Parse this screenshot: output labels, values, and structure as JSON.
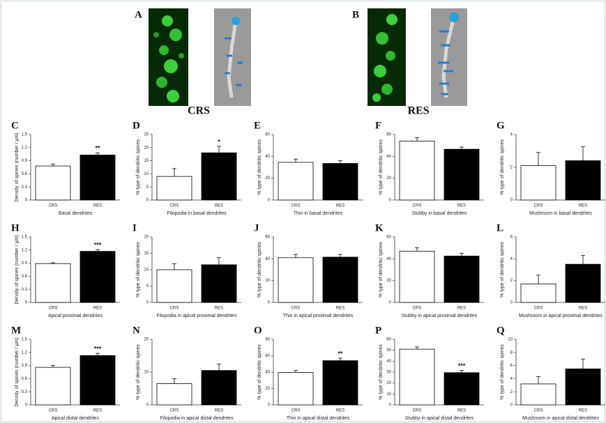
{
  "images": [
    {
      "letter": "A",
      "label": "CRS"
    },
    {
      "letter": "B",
      "label": "RES"
    }
  ],
  "chart_data": [
    {
      "type": "bar",
      "panel": "C",
      "ylabel": "Density of spines (number / µm)",
      "xlabel": "Basal dendrites",
      "categories": [
        "CRS",
        "RES"
      ],
      "values": [
        0.78,
        1.03
      ],
      "errors": [
        0.04,
        0.05
      ],
      "colors": [
        "#ffffff",
        "#000000"
      ],
      "significance": [
        null,
        "**"
      ],
      "ylim": [
        0,
        1.5
      ],
      "yticks": [
        0,
        0.3,
        0.6,
        0.9,
        1.2,
        1.5
      ]
    },
    {
      "type": "bar",
      "panel": "D",
      "ylabel": "% type of dendritic spines",
      "xlabel": "Filopodia in basal dendrites",
      "categories": [
        "CRS",
        "RES"
      ],
      "values": [
        9,
        18
      ],
      "errors": [
        3,
        2.5
      ],
      "colors": [
        "#ffffff",
        "#000000"
      ],
      "significance": [
        null,
        "*"
      ],
      "ylim": [
        0,
        25
      ],
      "yticks": [
        0,
        5,
        10,
        15,
        20,
        25
      ]
    },
    {
      "type": "bar",
      "panel": "E",
      "ylabel": "% type of dendritic spines",
      "xlabel": "Thin in basal dendrites",
      "categories": [
        "CRS",
        "RES"
      ],
      "values": [
        34.5,
        33.5
      ],
      "errors": [
        3,
        2.5
      ],
      "colors": [
        "#ffffff",
        "#000000"
      ],
      "ylim": [
        0,
        60
      ],
      "yticks": [
        0,
        20,
        40,
        60
      ]
    },
    {
      "type": "bar",
      "panel": "F",
      "ylabel": "% type of dendritic spines",
      "xlabel": "Stubby in basal dendrites",
      "categories": [
        "CRS",
        "RES"
      ],
      "values": [
        54,
        46.5
      ],
      "errors": [
        3,
        2
      ],
      "colors": [
        "#ffffff",
        "#000000"
      ],
      "ylim": [
        0,
        60
      ],
      "yticks": [
        0,
        20,
        40,
        60
      ]
    },
    {
      "type": "bar",
      "panel": "G",
      "ylabel": "% type of dendritic spines",
      "xlabel": "Mushroom in basal dendrites",
      "categories": [
        "CRS",
        "RES"
      ],
      "values": [
        2.1,
        2.4
      ],
      "errors": [
        0.8,
        0.85
      ],
      "colors": [
        "#ffffff",
        "#000000"
      ],
      "ylim": [
        0,
        4
      ],
      "yticks": [
        0,
        2,
        4
      ]
    },
    {
      "type": "bar",
      "panel": "H",
      "ylabel": "Density of spines (number / µm)",
      "xlabel": "Apical proximal dendrites",
      "categories": [
        "CRS",
        "RES"
      ],
      "values": [
        0.89,
        1.17
      ],
      "errors": [
        0.02,
        0.04
      ],
      "colors": [
        "#ffffff",
        "#000000"
      ],
      "significance": [
        null,
        "***"
      ],
      "ylim": [
        0,
        1.5
      ],
      "yticks": [
        0,
        0.3,
        0.6,
        0.9,
        1.2,
        1.5
      ]
    },
    {
      "type": "bar",
      "panel": "I",
      "ylabel": "% type of dendritic spines",
      "xlabel": "Filopodia in apical proximal dendrites",
      "categories": [
        "CRS",
        "RES"
      ],
      "values": [
        10,
        11.5
      ],
      "errors": [
        1.8,
        2.2
      ],
      "colors": [
        "#ffffff",
        "#000000"
      ],
      "ylim": [
        0,
        20
      ],
      "yticks": [
        0,
        5,
        10,
        15,
        20
      ]
    },
    {
      "type": "bar",
      "panel": "J",
      "ylabel": "% type of dendritic spines",
      "xlabel": "Thin in apical proximal dendrites",
      "categories": [
        "CRS",
        "RES"
      ],
      "values": [
        41,
        41.5
      ],
      "errors": [
        3,
        2.5
      ],
      "colors": [
        "#ffffff",
        "#000000"
      ],
      "ylim": [
        0,
        60
      ],
      "yticks": [
        0,
        20,
        40,
        60
      ]
    },
    {
      "type": "bar",
      "panel": "K",
      "ylabel": "% type of dendritic spines",
      "xlabel": "Stubby in apical proximal dendrites",
      "categories": [
        "CRS",
        "RES"
      ],
      "values": [
        47,
        42.5
      ],
      "errors": [
        3,
        2.5
      ],
      "colors": [
        "#ffffff",
        "#000000"
      ],
      "ylim": [
        0,
        60
      ],
      "yticks": [
        0,
        20,
        40,
        60
      ]
    },
    {
      "type": "bar",
      "panel": "L",
      "ylabel": "% type of dendritic spines",
      "xlabel": "Mushroom in apical proximal dendrites",
      "categories": [
        "CRS",
        "RES"
      ],
      "values": [
        1.7,
        3.5
      ],
      "errors": [
        0.8,
        0.8
      ],
      "colors": [
        "#ffffff",
        "#000000"
      ],
      "ylim": [
        0,
        6
      ],
      "yticks": [
        0,
        2,
        4,
        6
      ]
    },
    {
      "type": "bar",
      "panel": "M",
      "ylabel": "Density of spines (number / µm)",
      "xlabel": "Apical distal dendrites",
      "categories": [
        "CRS",
        "RES"
      ],
      "values": [
        0.86,
        1.13
      ],
      "errors": [
        0.04,
        0.05
      ],
      "colors": [
        "#ffffff",
        "#000000"
      ],
      "significance": [
        null,
        "***"
      ],
      "ylim": [
        0,
        1.5
      ],
      "yticks": [
        0,
        0.3,
        0.6,
        0.9,
        1.2,
        1.5
      ]
    },
    {
      "type": "bar",
      "panel": "N",
      "ylabel": "% type of dendritic spines",
      "xlabel": "Filopodia in apical distal dendrites",
      "categories": [
        "CRS",
        "RES"
      ],
      "values": [
        6.5,
        10.5
      ],
      "errors": [
        1.5,
        2
      ],
      "colors": [
        "#ffffff",
        "#000000"
      ],
      "ylim": [
        0,
        20
      ],
      "yticks": [
        0,
        10,
        20
      ]
    },
    {
      "type": "bar",
      "panel": "O",
      "ylabel": "% type of dendritic spines",
      "xlabel": "Thin in apical distal dendrites",
      "categories": [
        "CRS",
        "RES"
      ],
      "values": [
        39.5,
        54
      ],
      "errors": [
        2.5,
        3
      ],
      "colors": [
        "#ffffff",
        "#000000"
      ],
      "significance": [
        null,
        "**"
      ],
      "ylim": [
        0,
        80
      ],
      "yticks": [
        0,
        20,
        40,
        60,
        80
      ]
    },
    {
      "type": "bar",
      "panel": "P",
      "ylabel": "% type of dendritic spines",
      "xlabel": "Stubby in apical distal dendrites",
      "categories": [
        "CRS",
        "RES"
      ],
      "values": [
        51,
        29.5
      ],
      "errors": [
        2,
        2
      ],
      "colors": [
        "#ffffff",
        "#000000"
      ],
      "significance": [
        null,
        "***"
      ],
      "ylim": [
        0,
        60
      ],
      "yticks": [
        0,
        10,
        20,
        30,
        40,
        50,
        60
      ]
    },
    {
      "type": "bar",
      "panel": "Q",
      "ylabel": "% type of dendritic spines",
      "xlabel": "Mushroom in apical distal dendrites",
      "categories": [
        "CRS",
        "RES"
      ],
      "values": [
        3.2,
        5.5
      ],
      "errors": [
        1.1,
        1.5
      ],
      "colors": [
        "#ffffff",
        "#000000"
      ],
      "ylim": [
        0,
        10
      ],
      "yticks": [
        0,
        2,
        4,
        6,
        8,
        10
      ]
    }
  ]
}
